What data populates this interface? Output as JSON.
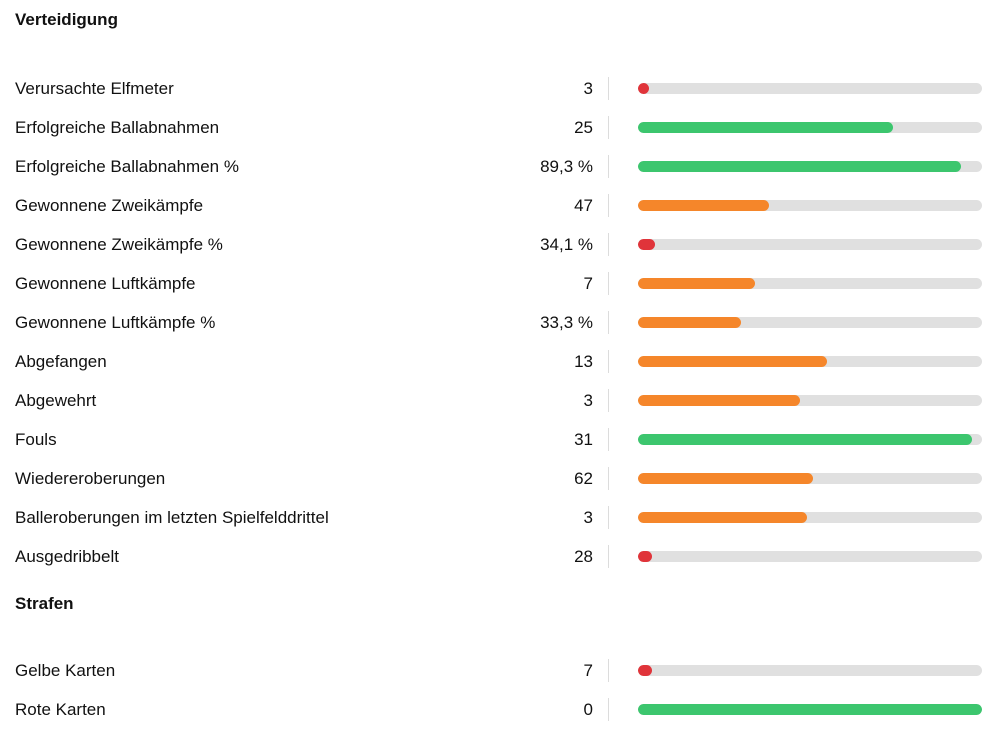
{
  "colors": {
    "good": "#3cc66e",
    "mid": "#f5862a",
    "bad": "#e0343a",
    "track": "#e0e0e0"
  },
  "sections": [
    {
      "title": "Verteidigung",
      "rows": [
        {
          "label": "Verursachte Elfmeter",
          "value": "3",
          "rating": 0.03,
          "color": "bad"
        },
        {
          "label": "Erfolgreiche Ballabnahmen",
          "value": "25",
          "rating": 0.74,
          "color": "good"
        },
        {
          "label": "Erfolgreiche Ballabnahmen %",
          "value": "89,3 %",
          "rating": 0.94,
          "color": "good"
        },
        {
          "label": "Gewonnene Zweikämpfe",
          "value": "47",
          "rating": 0.38,
          "color": "mid"
        },
        {
          "label": "Gewonnene Zweikämpfe %",
          "value": "34,1 %",
          "rating": 0.05,
          "color": "bad"
        },
        {
          "label": "Gewonnene Luftkämpfe",
          "value": "7",
          "rating": 0.34,
          "color": "mid"
        },
        {
          "label": "Gewonnene Luftkämpfe %",
          "value": "33,3 %",
          "rating": 0.3,
          "color": "mid"
        },
        {
          "label": "Abgefangen",
          "value": "13",
          "rating": 0.55,
          "color": "mid"
        },
        {
          "label": "Abgewehrt",
          "value": "3",
          "rating": 0.47,
          "color": "mid"
        },
        {
          "label": "Fouls",
          "value": "31",
          "rating": 0.97,
          "color": "good"
        },
        {
          "label": "Wiedereroberungen",
          "value": "62",
          "rating": 0.51,
          "color": "mid"
        },
        {
          "label": "Balleroberungen im letzten Spielfelddrittel",
          "value": "3",
          "rating": 0.49,
          "color": "mid"
        },
        {
          "label": "Ausgedribbelt",
          "value": "28",
          "rating": 0.04,
          "color": "bad"
        }
      ]
    },
    {
      "title": "Strafen",
      "rows": [
        {
          "label": "Gelbe Karten",
          "value": "7",
          "rating": 0.04,
          "color": "bad"
        },
        {
          "label": "Rote Karten",
          "value": "0",
          "rating": 1.0,
          "color": "good"
        }
      ]
    }
  ]
}
